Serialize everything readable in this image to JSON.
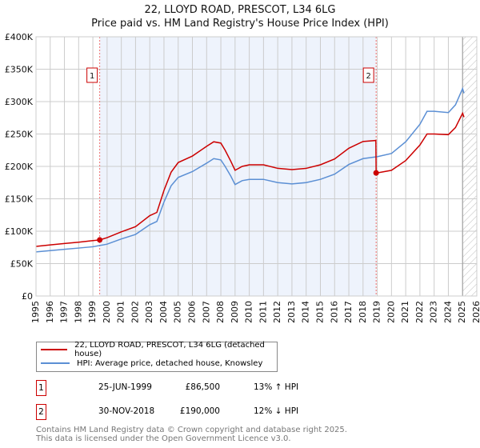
{
  "title": "22, LLOYD ROAD, PRESCOT, L34 6LG",
  "subtitle": "Price paid vs. HM Land Registry's House Price Index (HPI)",
  "chart_data": {
    "type": "line",
    "xlim": [
      1995,
      2026
    ],
    "ylim": [
      0,
      400000
    ],
    "yticks": [
      0,
      50000,
      100000,
      150000,
      200000,
      250000,
      300000,
      350000,
      400000
    ],
    "ytick_labels": [
      "£0",
      "£50K",
      "£100K",
      "£150K",
      "£200K",
      "£250K",
      "£300K",
      "£350K",
      "£400K"
    ],
    "xticks": [
      1995,
      1996,
      1997,
      1998,
      1999,
      2000,
      2001,
      2002,
      2003,
      2004,
      2005,
      2006,
      2007,
      2008,
      2009,
      2010,
      2011,
      2012,
      2013,
      2014,
      2015,
      2016,
      2017,
      2018,
      2019,
      2020,
      2021,
      2022,
      2023,
      2024,
      2025,
      2026
    ],
    "shaded_range": [
      1999.48,
      2018.92
    ],
    "hatched_from": 2025.0,
    "series": [
      {
        "name": "22, LLOYD ROAD, PRESCOT, L34 6LG (detached house)",
        "color": "#cc0000",
        "points": [
          [
            1995,
            76500
          ],
          [
            1996,
            78800
          ],
          [
            1997,
            81000
          ],
          [
            1998,
            83000
          ],
          [
            1999,
            85500
          ],
          [
            1999.48,
            86500
          ],
          [
            2000,
            90000
          ],
          [
            2001,
            99000
          ],
          [
            2002,
            107000
          ],
          [
            2003,
            124000
          ],
          [
            2003.5,
            129000
          ],
          [
            2004,
            163000
          ],
          [
            2004.5,
            191000
          ],
          [
            2005,
            206000
          ],
          [
            2006,
            216000
          ],
          [
            2007,
            231000
          ],
          [
            2007.5,
            238000
          ],
          [
            2008,
            236000
          ],
          [
            2008.3,
            225000
          ],
          [
            2008.7,
            208000
          ],
          [
            2009,
            194000
          ],
          [
            2009.5,
            200000
          ],
          [
            2010,
            202500
          ],
          [
            2011,
            202500
          ],
          [
            2012,
            197000
          ],
          [
            2013,
            195000
          ],
          [
            2014,
            197000
          ],
          [
            2015,
            202500
          ],
          [
            2016,
            211500
          ],
          [
            2017,
            228000
          ],
          [
            2018,
            238500
          ],
          [
            2018.9,
            240000
          ],
          [
            2018.92,
            190000
          ],
          [
            2019,
            190000
          ],
          [
            2020,
            194000
          ],
          [
            2021,
            209000
          ],
          [
            2022,
            233000
          ],
          [
            2022.5,
            250000
          ],
          [
            2023,
            250000
          ],
          [
            2024,
            249000
          ],
          [
            2024.5,
            260000
          ],
          [
            2025,
            282000
          ],
          [
            2025.1,
            276000
          ]
        ]
      },
      {
        "name": "HPI: Average price, detached house, Knowsley",
        "color": "#5b8fd4",
        "points": [
          [
            1995,
            68000
          ],
          [
            1996,
            70000
          ],
          [
            1997,
            72000
          ],
          [
            1998,
            74000
          ],
          [
            1999,
            76000
          ],
          [
            2000,
            80000
          ],
          [
            2001,
            88000
          ],
          [
            2002,
            95000
          ],
          [
            2003,
            110000
          ],
          [
            2003.5,
            115000
          ],
          [
            2004,
            145000
          ],
          [
            2004.5,
            170000
          ],
          [
            2005,
            183000
          ],
          [
            2006,
            192000
          ],
          [
            2007,
            205000
          ],
          [
            2007.5,
            212000
          ],
          [
            2008,
            210000
          ],
          [
            2008.3,
            200000
          ],
          [
            2008.7,
            185000
          ],
          [
            2009,
            172000
          ],
          [
            2009.5,
            178000
          ],
          [
            2010,
            180000
          ],
          [
            2011,
            180000
          ],
          [
            2012,
            175000
          ],
          [
            2013,
            173000
          ],
          [
            2014,
            175000
          ],
          [
            2015,
            180000
          ],
          [
            2016,
            188000
          ],
          [
            2017,
            203000
          ],
          [
            2018,
            212000
          ],
          [
            2019,
            215000
          ],
          [
            2020,
            220000
          ],
          [
            2021,
            238000
          ],
          [
            2022,
            265000
          ],
          [
            2022.5,
            285000
          ],
          [
            2023,
            285000
          ],
          [
            2024,
            283000
          ],
          [
            2024.5,
            295000
          ],
          [
            2025,
            320000
          ],
          [
            2025.1,
            313000
          ]
        ]
      }
    ],
    "sales": [
      {
        "label": "1",
        "x": 1999.48,
        "y": 86500,
        "date": "25-JUN-1999",
        "price": "£86,500",
        "hpi": "13% ↑ HPI"
      },
      {
        "label": "2",
        "x": 2018.92,
        "y": 190000,
        "date": "30-NOV-2018",
        "price": "£190,000",
        "hpi": "12% ↓ HPI"
      }
    ]
  },
  "footer": {
    "line1": "Contains HM Land Registry data © Crown copyright and database right 2025.",
    "line2": "This data is licensed under the Open Government Licence v3.0."
  }
}
